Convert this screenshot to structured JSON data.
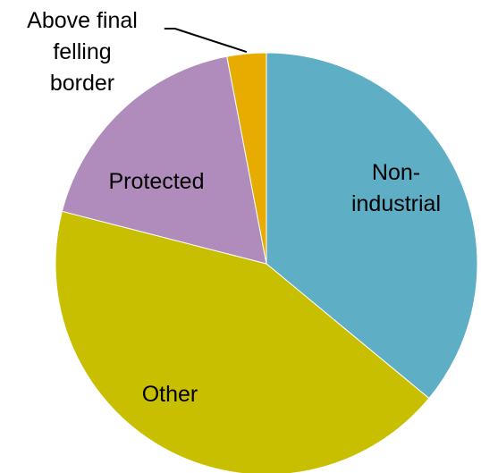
{
  "chart_data": {
    "type": "pie",
    "title": "",
    "slices": [
      {
        "label": "Non-industrial",
        "label_lines": [
          "Non-",
          "industrial"
        ],
        "value": 36,
        "color": "#5eaec6"
      },
      {
        "label": "Other",
        "label_lines": [
          "Other"
        ],
        "value": 43,
        "color": "#c8bf00"
      },
      {
        "label": "Protected",
        "label_lines": [
          "Protected"
        ],
        "value": 18,
        "color": "#b08cbc"
      },
      {
        "label": "Above final felling border",
        "label_lines": [
          "Above final",
          "felling",
          "border"
        ],
        "value": 3,
        "color": "#e8ac00"
      }
    ],
    "start_angle_deg": 0,
    "direction": "clockwise",
    "legend": "none",
    "label_placement": "on slices; callout line for smallest slice"
  }
}
